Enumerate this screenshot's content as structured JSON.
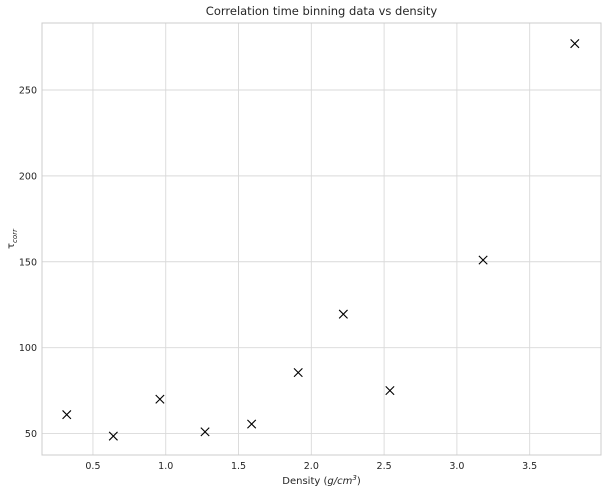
{
  "chart_data": {
    "type": "scatter",
    "title": "Correlation time binning data vs density",
    "xlabel_prefix": "Density (",
    "xlabel_unit_base": "g/cm",
    "xlabel_unit_exp": "3",
    "xlabel_suffix": ")",
    "ylabel_symbol": "τ",
    "ylabel_subscript": "corr",
    "xlim": [
      0.15,
      3.99
    ],
    "ylim": [
      37.5,
      289
    ],
    "xticks": [
      0.5,
      1.0,
      1.5,
      2.0,
      2.5,
      3.0,
      3.5
    ],
    "xtick_labels": [
      "0.5",
      "1.0",
      "1.5",
      "2.0",
      "2.5",
      "3.0",
      "3.5"
    ],
    "yticks": [
      50,
      100,
      150,
      200,
      250
    ],
    "ytick_labels": [
      "50",
      "100",
      "150",
      "200",
      "250"
    ],
    "grid": true,
    "marker": "x",
    "marker_color": "#000000",
    "points": [
      {
        "x": 0.32,
        "y": 61
      },
      {
        "x": 0.64,
        "y": 48.5
      },
      {
        "x": 0.96,
        "y": 70
      },
      {
        "x": 1.27,
        "y": 51
      },
      {
        "x": 1.59,
        "y": 55.5
      },
      {
        "x": 1.91,
        "y": 85.5
      },
      {
        "x": 2.22,
        "y": 119.5
      },
      {
        "x": 2.54,
        "y": 75
      },
      {
        "x": 3.18,
        "y": 151
      },
      {
        "x": 3.81,
        "y": 277
      }
    ]
  }
}
